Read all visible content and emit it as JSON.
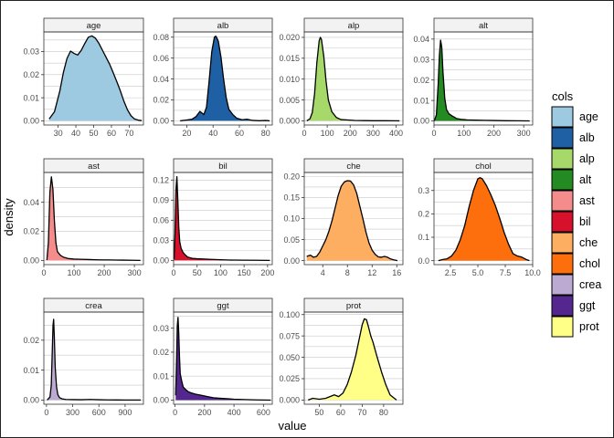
{
  "chart_data": {
    "type": "area",
    "subtype": "faceted-density",
    "xlabel": "value",
    "ylabel": "density",
    "legend": {
      "title": "cols",
      "placement": "right"
    },
    "grid": true,
    "facet_order": [
      "age",
      "alb",
      "alp",
      "alt",
      "ast",
      "bil",
      "che",
      "chol",
      "crea",
      "ggt",
      "prot"
    ],
    "panels": [
      {
        "name": "age",
        "color": "#9ecae1",
        "xlim": [
          22,
          78
        ],
        "ylim": [
          -0.0018,
          0.0385
        ],
        "xticks": [
          30,
          40,
          50,
          60,
          70
        ],
        "xticklabels": [
          "30",
          "40",
          "50",
          "60",
          "70"
        ],
        "yticks": [
          0,
          0.01,
          0.02,
          0.03
        ],
        "yticklabels": [
          "0.00",
          "0.01",
          "0.02",
          "0.03"
        ],
        "x": [
          25,
          28,
          31,
          33,
          35,
          37,
          39,
          41,
          43,
          45,
          47,
          49,
          51,
          53,
          55,
          57,
          59,
          61,
          63,
          65,
          67,
          69,
          71,
          73,
          75,
          77
        ],
        "y": [
          0.0008,
          0.004,
          0.013,
          0.021,
          0.027,
          0.0302,
          0.0292,
          0.0285,
          0.0305,
          0.0335,
          0.0362,
          0.0368,
          0.0358,
          0.0335,
          0.0305,
          0.0275,
          0.0245,
          0.0208,
          0.017,
          0.013,
          0.0085,
          0.0048,
          0.0022,
          0.0008,
          0.0003,
          0.0001
        ]
      },
      {
        "name": "alb",
        "color": "#1f5fa3",
        "xlim": [
          10,
          85
        ],
        "ylim": [
          -0.004,
          0.085
        ],
        "xticks": [
          20,
          40,
          60,
          80
        ],
        "xticklabels": [
          "20",
          "40",
          "60",
          "80"
        ],
        "yticks": [
          0,
          0.02,
          0.04,
          0.06,
          0.08
        ],
        "yticklabels": [
          "0.00",
          "0.02",
          "0.04",
          "0.06",
          "0.08"
        ],
        "x": [
          15,
          20,
          24,
          27,
          30,
          33,
          35,
          37,
          39,
          41,
          42,
          43,
          44,
          46,
          48,
          50,
          52,
          55,
          58,
          62,
          66,
          70,
          75,
          80,
          83
        ],
        "y": [
          0,
          0.0008,
          0.0015,
          0.004,
          0.009,
          0.006,
          0.013,
          0.038,
          0.066,
          0.08,
          0.081,
          0.079,
          0.076,
          0.061,
          0.04,
          0.022,
          0.011,
          0.006,
          0.0025,
          0.001,
          0.0015,
          0.0004,
          0.0001,
          0.0003,
          0
        ]
      },
      {
        "name": "alp",
        "color": "#a6d96a",
        "xlim": [
          0,
          430
        ],
        "ylim": [
          -0.001,
          0.0213
        ],
        "xticks": [
          0,
          100,
          200,
          300,
          400
        ],
        "xticklabels": [
          "0",
          "100",
          "200",
          "300",
          "400"
        ],
        "yticks": [
          0,
          0.005,
          0.01,
          0.015,
          0.02
        ],
        "yticklabels": [
          "0.000",
          "0.005",
          "0.010",
          "0.015",
          "0.020"
        ],
        "x": [
          11,
          25,
          35,
          45,
          55,
          65,
          70,
          75,
          85,
          95,
          105,
          120,
          140,
          160,
          190,
          220,
          260,
          300,
          350,
          400,
          415
        ],
        "y": [
          0,
          0.0005,
          0.002,
          0.0065,
          0.014,
          0.0192,
          0.02,
          0.0195,
          0.0155,
          0.0095,
          0.005,
          0.0022,
          0.0008,
          0.0003,
          0.0002,
          0.0001,
          5e-05,
          3e-05,
          2e-05,
          1e-05,
          0
        ]
      },
      {
        "name": "alt",
        "color": "#238b21",
        "xlim": [
          0,
          330
        ],
        "ylim": [
          -0.002,
          0.0435
        ],
        "xticks": [
          0,
          100,
          200,
          300
        ],
        "xticklabels": [
          "0",
          "100",
          "200",
          "300"
        ],
        "yticks": [
          0,
          0.01,
          0.02,
          0.03,
          0.04
        ],
        "yticklabels": [
          "0.00",
          "0.01",
          "0.02",
          "0.03",
          "0.04"
        ],
        "x": [
          1,
          8,
          14,
          18,
          22,
          26,
          30,
          36,
          42,
          50,
          60,
          75,
          90,
          110,
          140,
          170,
          200,
          240,
          280,
          320
        ],
        "y": [
          0,
          0.003,
          0.018,
          0.032,
          0.0395,
          0.036,
          0.024,
          0.011,
          0.0055,
          0.0035,
          0.0025,
          0.0012,
          0.0008,
          0.0005,
          0.0004,
          0.0003,
          0.0002,
          0.0001,
          5e-05,
          0
        ]
      },
      {
        "name": "ast",
        "color": "#f58c8c",
        "xlim": [
          0,
          330
        ],
        "ylim": [
          -0.0029,
          0.0605
        ],
        "xticks": [
          0,
          100,
          200,
          300
        ],
        "xticklabels": [
          "0",
          "100",
          "200",
          "300"
        ],
        "yticks": [
          0,
          0.02,
          0.04
        ],
        "yticklabels": [
          "0.00",
          "0.02",
          "0.04"
        ],
        "x": [
          10,
          15,
          20,
          25,
          30,
          35,
          40,
          45,
          55,
          65,
          80,
          100,
          120,
          150,
          180,
          220,
          260,
          300,
          320
        ],
        "y": [
          0.0002,
          0.012,
          0.047,
          0.0575,
          0.049,
          0.027,
          0.012,
          0.006,
          0.0035,
          0.0022,
          0.0013,
          0.0009,
          0.0008,
          0.0006,
          0.0004,
          0.0003,
          0.0002,
          0.0001,
          0
        ]
      },
      {
        "name": "bil",
        "color": "#d7102c",
        "xlim": [
          0,
          210
        ],
        "ylim": [
          -0.0063,
          0.1313
        ],
        "xticks": [
          0,
          50,
          100,
          150,
          200
        ],
        "xticklabels": [
          "0",
          "50",
          "100",
          "150",
          "200"
        ],
        "yticks": [
          0,
          0.03,
          0.06,
          0.09,
          0.12
        ],
        "yticklabels": [
          "0.00",
          "0.03",
          "0.06",
          "0.09",
          "0.12"
        ],
        "x": [
          1,
          3,
          5,
          7,
          9,
          11,
          13,
          16,
          20,
          25,
          30,
          40,
          50,
          65,
          80,
          100,
          120,
          150,
          180,
          205
        ],
        "y": [
          0.002,
          0.04,
          0.105,
          0.125,
          0.09,
          0.05,
          0.028,
          0.018,
          0.012,
          0.008,
          0.005,
          0.003,
          0.0025,
          0.002,
          0.0015,
          0.001,
          0.0005,
          0.0003,
          0.0002,
          0
        ]
      },
      {
        "name": "che",
        "color": "#fdae61",
        "xlim": [
          1,
          17
        ],
        "ylim": [
          -0.0095,
          0.2095
        ],
        "xticks": [
          4,
          8,
          12,
          16
        ],
        "xticklabels": [
          "4",
          "8",
          "12",
          "16"
        ],
        "yticks": [
          0,
          0.05,
          0.1,
          0.15,
          0.2
        ],
        "yticklabels": [
          "0.00",
          "0.05",
          "0.10",
          "0.15",
          "0.20"
        ],
        "x": [
          1.4,
          2,
          2.5,
          3,
          3.5,
          4,
          4.5,
          5,
          5.5,
          6,
          6.5,
          7,
          7.5,
          8,
          8.5,
          9,
          9.5,
          10,
          10.5,
          11,
          11.5,
          12,
          12.5,
          13,
          13.5,
          14,
          14.5,
          15,
          15.5,
          16.1
        ],
        "y": [
          0.01,
          0.013,
          0.008,
          0.01,
          0.02,
          0.035,
          0.05,
          0.07,
          0.095,
          0.125,
          0.155,
          0.177,
          0.187,
          0.19,
          0.189,
          0.18,
          0.16,
          0.13,
          0.1,
          0.068,
          0.042,
          0.025,
          0.015,
          0.009,
          0.008,
          0.01,
          0.008,
          0.004,
          0.002,
          0
        ]
      },
      {
        "name": "chol",
        "color": "#fd6f0c",
        "xlim": [
          1,
          10
        ],
        "ylim": [
          -0.017,
          0.377
        ],
        "xticks": [
          2.5,
          5,
          7.5,
          10
        ],
        "xticklabels": [
          "2.5",
          "5.0",
          "7.5",
          "10.0"
        ],
        "yticks": [
          0,
          0.1,
          0.2,
          0.3
        ],
        "yticklabels": [
          "0.0",
          "0.1",
          "0.2",
          "0.3"
        ],
        "x": [
          1.4,
          1.8,
          2.2,
          2.6,
          3,
          3.4,
          3.8,
          4.2,
          4.6,
          5,
          5.2,
          5.4,
          5.8,
          6.2,
          6.6,
          7,
          7.4,
          7.8,
          8.2,
          8.6,
          9,
          9.4,
          9.7
        ],
        "y": [
          0,
          0.005,
          0.008,
          0.02,
          0.045,
          0.09,
          0.15,
          0.23,
          0.3,
          0.35,
          0.355,
          0.35,
          0.32,
          0.28,
          0.235,
          0.18,
          0.12,
          0.07,
          0.03,
          0.02,
          0.015,
          0.005,
          0
        ]
      },
      {
        "name": "crea",
        "color": "#bcaad3",
        "xlim": [
          -30,
          1110
        ],
        "ylim": [
          -0.0014,
          0.0294
        ],
        "xticks": [
          0,
          300,
          600,
          900
        ],
        "xticklabels": [
          "0",
          "300",
          "600",
          "900"
        ],
        "yticks": [
          0,
          0.01,
          0.02
        ],
        "yticklabels": [
          "0.00",
          "0.01",
          "0.02"
        ],
        "x": [
          8,
          40,
          55,
          65,
          75,
          82,
          90,
          100,
          115,
          130,
          150,
          180,
          220,
          300,
          400,
          500,
          600,
          700,
          800,
          900,
          1000,
          1080
        ],
        "y": [
          0,
          0.001,
          0.005,
          0.015,
          0.025,
          0.027,
          0.021,
          0.011,
          0.0045,
          0.0018,
          0.0008,
          0.0004,
          0.0002,
          0.00015,
          0.0001,
          0.0002,
          0.0001,
          5e-05,
          3e-05,
          2e-05,
          1e-05,
          0
        ]
      },
      {
        "name": "ggt",
        "color": "#54278f",
        "xlim": [
          -10,
          660
        ],
        "ylim": [
          -0.0017,
          0.0367
        ],
        "xticks": [
          0,
          200,
          400,
          600
        ],
        "xticklabels": [
          "0",
          "200",
          "400",
          "600"
        ],
        "yticks": [
          0,
          0.01,
          0.02,
          0.03
        ],
        "yticklabels": [
          "0.00",
          "0.01",
          "0.02",
          "0.03"
        ],
        "x": [
          4,
          10,
          15,
          20,
          25,
          30,
          35,
          45,
          55,
          70,
          90,
          110,
          140,
          180,
          220,
          260,
          300,
          350,
          400,
          450,
          500,
          550,
          600,
          650
        ],
        "y": [
          0.002,
          0.016,
          0.031,
          0.0345,
          0.028,
          0.018,
          0.011,
          0.008,
          0.0055,
          0.0045,
          0.0035,
          0.003,
          0.0025,
          0.002,
          0.0015,
          0.001,
          0.0008,
          0.0006,
          0.0004,
          0.0003,
          0.0002,
          0.0001,
          5e-05,
          0
        ]
      },
      {
        "name": "prot",
        "color": "#ffff88",
        "xlim": [
          43,
          89
        ],
        "ylim": [
          -0.0049,
          0.1029
        ],
        "xticks": [
          50,
          60,
          70,
          80
        ],
        "xticklabels": [
          "50",
          "60",
          "70",
          "80"
        ],
        "yticks": [
          0,
          0.025,
          0.05,
          0.075,
          0.1
        ],
        "yticklabels": [
          "0.000",
          "0.025",
          "0.050",
          "0.075",
          "0.100"
        ],
        "x": [
          44.8,
          47,
          50,
          53,
          55,
          57,
          59,
          61,
          63,
          65,
          67,
          69,
          70,
          71,
          72,
          73,
          74,
          75,
          77,
          79,
          81,
          83,
          85,
          86
        ],
        "y": [
          0,
          0.002,
          0.001,
          0.002,
          0.004,
          0.006,
          0.004,
          0.008,
          0.018,
          0.033,
          0.052,
          0.076,
          0.088,
          0.095,
          0.094,
          0.085,
          0.075,
          0.068,
          0.05,
          0.033,
          0.018,
          0.006,
          0.002,
          0
        ]
      }
    ]
  }
}
